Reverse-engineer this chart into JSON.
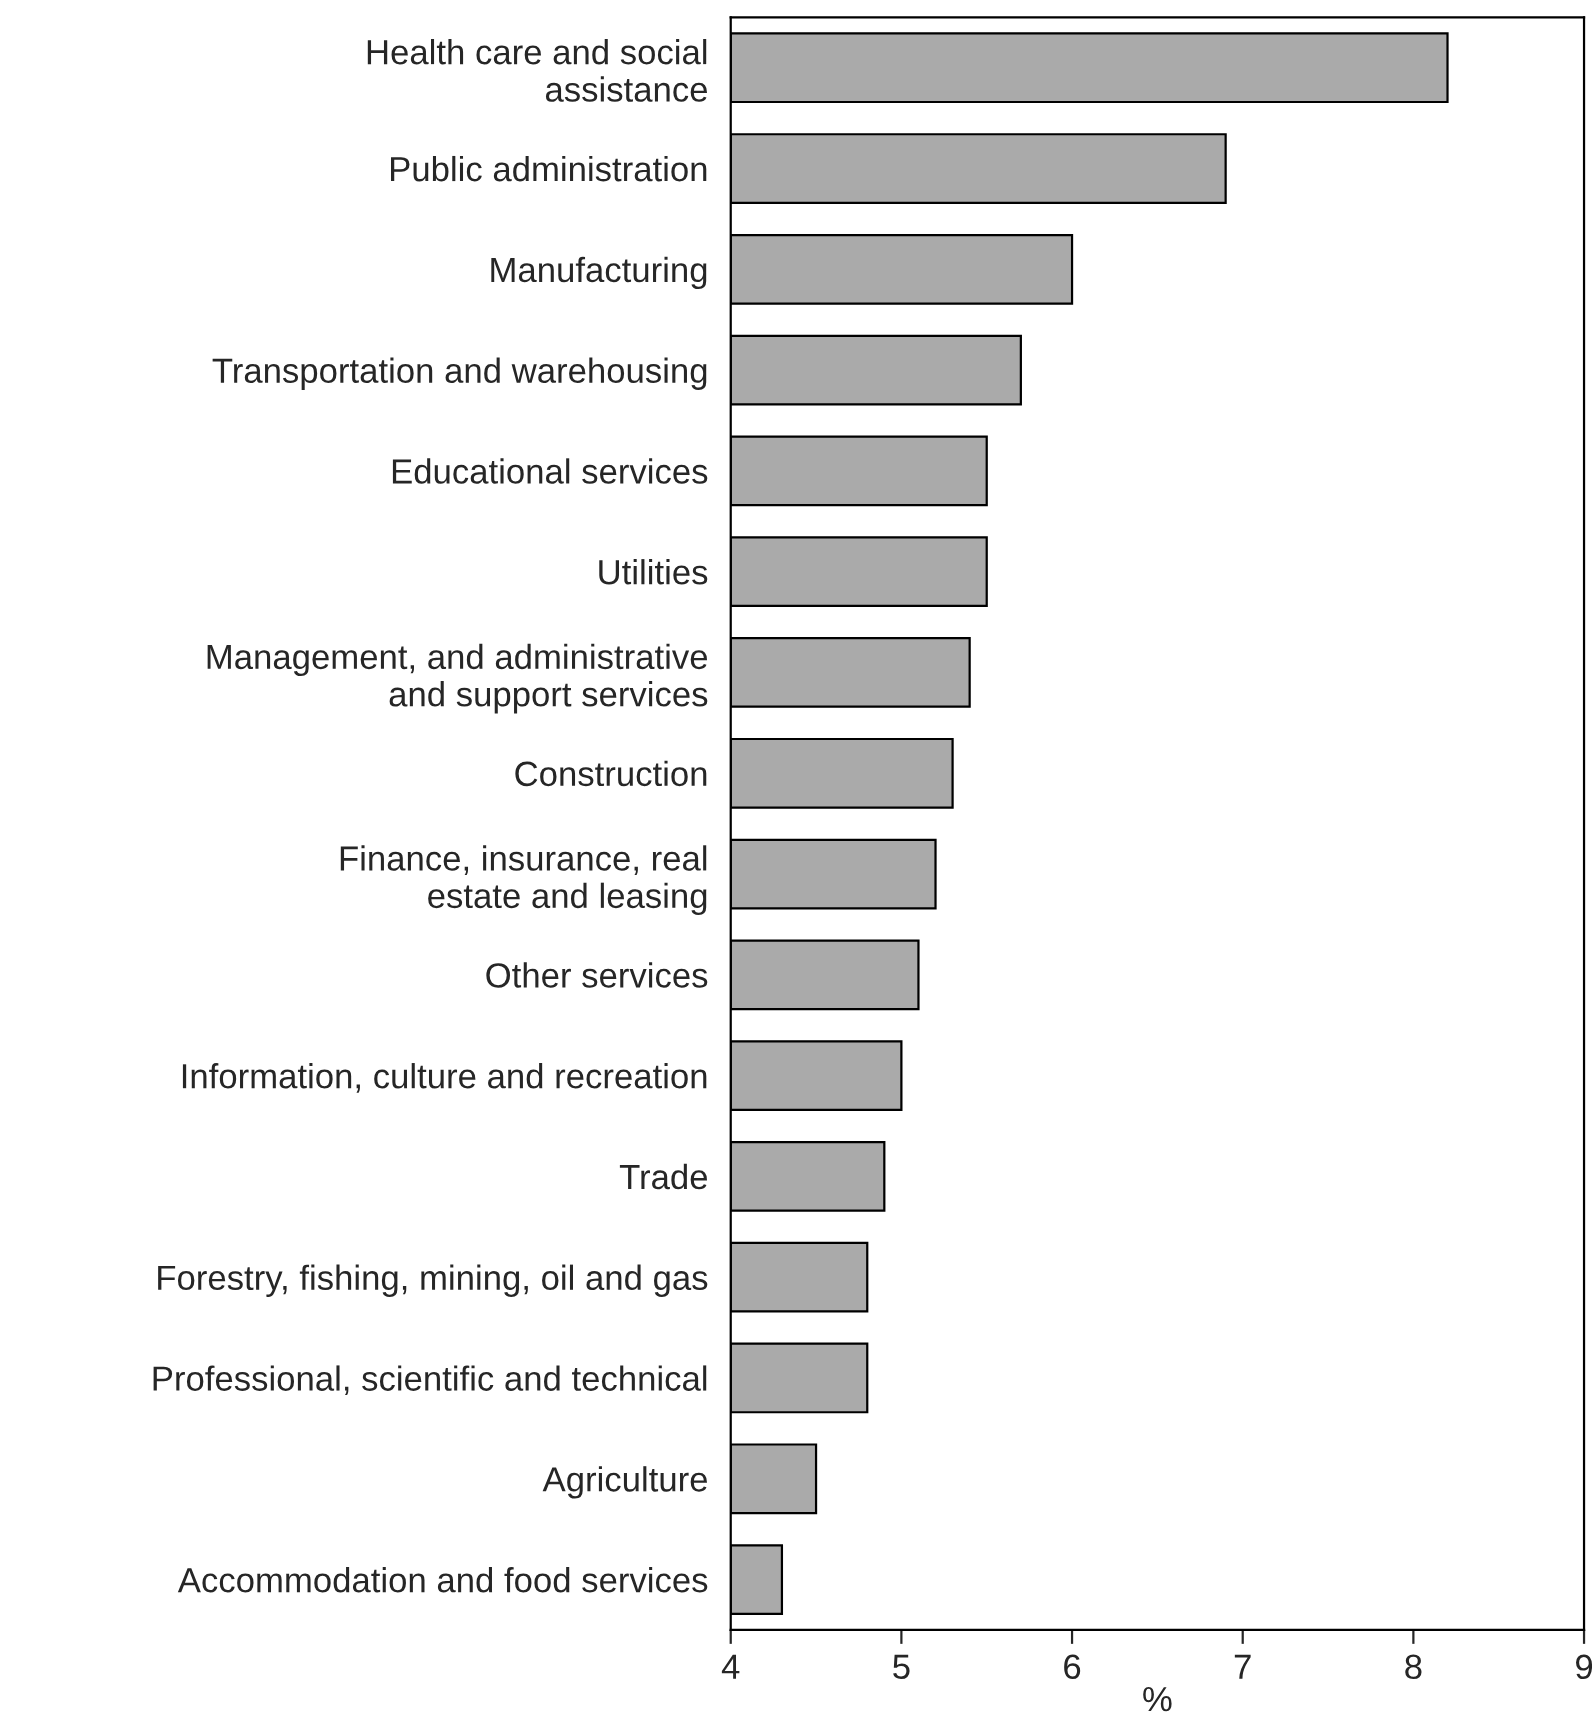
{
  "chart_data": {
    "type": "bar",
    "orientation": "horizontal",
    "xlabel": "%",
    "categories": [
      "Health care and social\nassistance",
      "Public administration",
      "Manufacturing",
      "Transportation and warehousing",
      "Educational services",
      "Utilities",
      "Management, and administrative\nand support services",
      "Construction",
      "Finance, insurance, real\nestate and leasing",
      "Other services",
      "Information, culture and recreation",
      "Trade",
      "Forestry, fishing, mining, oil and gas",
      "Professional, scientific and technical",
      "Agriculture",
      "Accommodation and food services"
    ],
    "values": [
      8.2,
      6.9,
      6.0,
      5.7,
      5.5,
      5.5,
      5.4,
      5.3,
      5.2,
      5.1,
      5.0,
      4.9,
      4.8,
      4.8,
      4.5,
      4.3
    ],
    "color": "#aaaaaa",
    "xlim": [
      4,
      9
    ],
    "xticks": [
      4,
      5,
      6,
      7,
      8,
      9
    ],
    "grid": false,
    "legend": false
  }
}
